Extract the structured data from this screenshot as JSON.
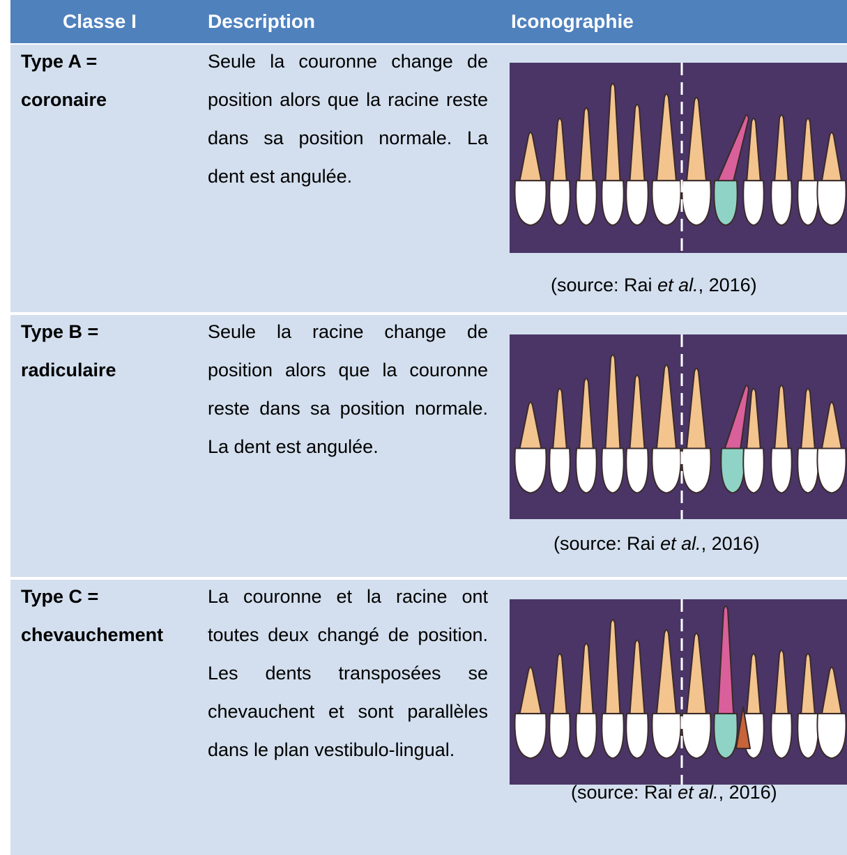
{
  "table": {
    "header": [
      "Classe I",
      "Description",
      "Iconographie"
    ],
    "rows": [
      {
        "type": "Type A =",
        "name": "coronaire",
        "description": "Seule la couronne change de position alors que la racine reste dans sa position normale. La dent est angulée.",
        "source": [
          "(source: Rai ",
          "et al.",
          ", 2016)"
        ]
      },
      {
        "type": "Type B =",
        "name": "radiculaire",
        "description": "Seule la racine change de position alors que la couronne reste dans sa position normale. La dent est angulée.",
        "source": [
          "(source: Rai ",
          "et al.",
          ", 2016)"
        ]
      },
      {
        "type": "Type C =",
        "name": "chevauchement",
        "description": "La couronne et la racine ont toutes deux changé de position. Les dents transposées se chevauchent et sont parallèles dans le plan vestibulo-lingual.",
        "source": [
          "(source: Rai ",
          "et al.",
          ", 2016)"
        ]
      }
    ]
  }
}
